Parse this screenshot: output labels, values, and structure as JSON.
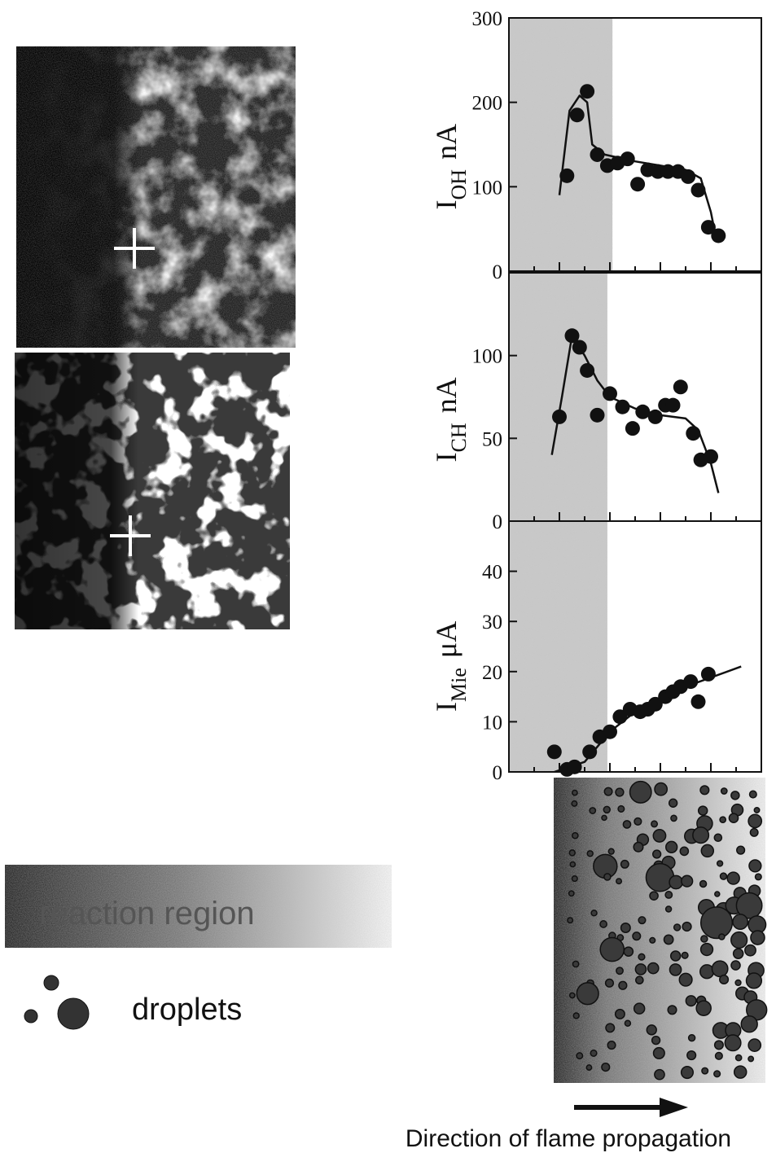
{
  "chart_data": [
    {
      "type": "scatter",
      "ylabel": {
        "main": "I",
        "sub": "OH",
        "unit": "nA"
      },
      "xlim": [
        0,
        10
      ],
      "xticks": [
        0,
        1,
        2,
        3,
        4,
        5,
        6,
        7,
        8,
        9,
        10
      ],
      "ylim": [
        0,
        300
      ],
      "yticks": [
        0,
        100,
        200,
        300
      ],
      "shaded_region": [
        0,
        4.1
      ],
      "color": "#111111",
      "points": {
        "x": [
          2.3,
          2.7,
          3.1,
          3.5,
          3.9,
          4.3,
          4.7,
          5.1,
          5.5,
          5.9,
          6.3,
          6.7,
          7.1,
          7.5,
          7.9,
          8.3
        ],
        "y": [
          113,
          185,
          213,
          138,
          125,
          128,
          133,
          103,
          120,
          118,
          118,
          118,
          112,
          96,
          52,
          42
        ]
      },
      "curve": {
        "x": [
          2.0,
          2.4,
          2.8,
          3.1,
          3.3,
          3.8,
          5.0,
          6.0,
          7.0,
          7.6,
          8.0,
          8.2
        ],
        "y": [
          90,
          190,
          208,
          200,
          150,
          138,
          130,
          125,
          120,
          110,
          70,
          40
        ]
      }
    },
    {
      "type": "scatter",
      "ylabel": {
        "main": "I",
        "sub": "CH",
        "unit": "nA"
      },
      "xlim": [
        0,
        10
      ],
      "xticks": [
        0,
        1,
        2,
        3,
        4,
        5,
        6,
        7,
        8,
        9,
        10
      ],
      "ylim": [
        0,
        150
      ],
      "yticks": [
        0,
        50,
        100
      ],
      "shaded_region": [
        0,
        3.9
      ],
      "color": "#111111",
      "points": {
        "x": [
          2.0,
          2.5,
          2.8,
          3.1,
          3.5,
          4.0,
          4.5,
          4.9,
          5.3,
          5.8,
          6.2,
          6.5,
          6.8,
          7.3,
          7.6,
          8.0
        ],
        "y": [
          63,
          112,
          105,
          91,
          64,
          77,
          69,
          56,
          66,
          63,
          70,
          70,
          81,
          53,
          37,
          39
        ]
      },
      "curve": {
        "x": [
          1.7,
          2.1,
          2.5,
          3.0,
          3.5,
          4.0,
          5.0,
          6.0,
          7.0,
          7.5,
          8.0,
          8.3
        ],
        "y": [
          40,
          75,
          112,
          100,
          85,
          75,
          68,
          64,
          62,
          55,
          35,
          17
        ]
      }
    },
    {
      "type": "scatter",
      "ylabel": {
        "main": "I",
        "sub": "Mie",
        "unit": "μA"
      },
      "xlim": [
        0,
        10
      ],
      "xticks": [
        0,
        1,
        2,
        3,
        4,
        5,
        6,
        7,
        8,
        9,
        10
      ],
      "ylim": [
        0,
        50
      ],
      "yticks": [
        0,
        10,
        20,
        30,
        40
      ],
      "shaded_region": [
        0,
        3.9
      ],
      "color": "#111111",
      "points": {
        "x": [
          1.8,
          2.3,
          2.6,
          3.2,
          3.6,
          4.0,
          4.4,
          4.8,
          5.2,
          5.5,
          5.8,
          6.2,
          6.5,
          6.8,
          7.2,
          7.5,
          7.9
        ],
        "y": [
          4,
          0.5,
          1,
          4,
          7,
          8,
          11,
          12.5,
          12,
          12.5,
          13.5,
          15,
          16,
          17,
          18,
          14,
          19.5
        ]
      },
      "curve": {
        "x": [
          1.8,
          3.0,
          4.0,
          5.0,
          6.0,
          7.0,
          9.2
        ],
        "y": [
          0,
          2,
          8,
          12,
          14.5,
          17,
          21
        ]
      }
    }
  ],
  "legend": {
    "reaction_region": "reaction region",
    "droplets": "droplets"
  },
  "caption": "Direction of flame propagation"
}
